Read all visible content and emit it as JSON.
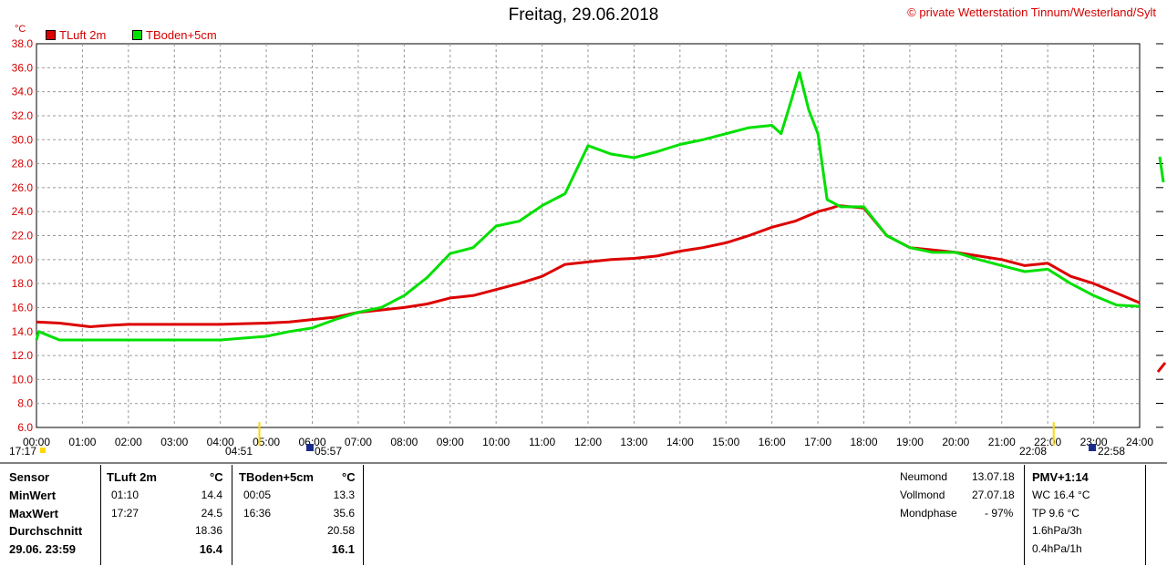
{
  "title": "Freitag, 29.06.2018",
  "copyright": "© private Wetterstation Tinnum/Westerland/Sylt",
  "unit": "°C",
  "colors": {
    "tluft": "#dd0000",
    "tboden": "#00e000",
    "grid": "#999999",
    "axis_text": "#d40000"
  },
  "sun_moon": {
    "moonset": "17:17",
    "sunrise": "04:51",
    "moonrise_rise": "05:57",
    "sunset": "22:08",
    "moonrise": "22:58"
  },
  "chart_data": {
    "type": "line",
    "title": "Freitag, 29.06.2018",
    "ylabel": "°C",
    "ylim": [
      6,
      38
    ],
    "xlim": [
      0,
      24
    ],
    "yticks": [
      "6.0",
      "8.0",
      "10.0",
      "12.0",
      "14.0",
      "16.0",
      "18.0",
      "20.0",
      "22.0",
      "24.0",
      "26.0",
      "28.0",
      "30.0",
      "32.0",
      "34.0",
      "36.0",
      "38.0"
    ],
    "xticks": [
      "00:00",
      "01:00",
      "02:00",
      "03:00",
      "04:00",
      "05:00",
      "06:00",
      "07:00",
      "08:00",
      "09:00",
      "10:00",
      "11:00",
      "12:00",
      "13:00",
      "14:00",
      "15:00",
      "16:00",
      "17:00",
      "18:00",
      "19:00",
      "20:00",
      "21:00",
      "22:00",
      "23:00",
      "24:00"
    ],
    "grid": true,
    "legend_position": "top-left",
    "series": [
      {
        "name": "TLuft 2m",
        "color": "#dd0000",
        "x": [
          0,
          0.5,
          1.17,
          1.5,
          2,
          3,
          4,
          5,
          5.5,
          6,
          6.5,
          7,
          7.5,
          8,
          8.5,
          9,
          9.5,
          10,
          10.5,
          11,
          11.5,
          12,
          12.5,
          13,
          13.5,
          14,
          14.5,
          15,
          15.5,
          16,
          16.5,
          17,
          17.3,
          17.45,
          18,
          18.5,
          19,
          19.5,
          20,
          20.5,
          21,
          21.5,
          22,
          22.5,
          23,
          23.5,
          24
        ],
        "y": [
          14.8,
          14.7,
          14.4,
          14.5,
          14.6,
          14.6,
          14.6,
          14.7,
          14.8,
          15.0,
          15.2,
          15.6,
          15.8,
          16.0,
          16.3,
          16.8,
          17.0,
          17.5,
          18.0,
          18.6,
          19.6,
          19.8,
          20.0,
          20.1,
          20.3,
          20.7,
          21.0,
          21.4,
          22.0,
          22.7,
          23.2,
          24.0,
          24.3,
          24.5,
          24.3,
          22.0,
          21.0,
          20.8,
          20.6,
          20.3,
          20.0,
          19.5,
          19.7,
          18.6,
          18.0,
          17.2,
          16.4
        ]
      },
      {
        "name": "TBoden+5cm",
        "color": "#00e000",
        "x": [
          0,
          0.05,
          0.5,
          1,
          2,
          3,
          4,
          5,
          5.5,
          6,
          6.5,
          7,
          7.5,
          8,
          8.5,
          9,
          9.5,
          10,
          10.5,
          11,
          11.5,
          12,
          12.5,
          13,
          13.5,
          14,
          14.5,
          15,
          15.5,
          16,
          16.2,
          16.4,
          16.6,
          16.8,
          17,
          17.2,
          17.5,
          18,
          18.5,
          19,
          19.5,
          20,
          20.5,
          21,
          21.5,
          22,
          22.5,
          23,
          23.5,
          24
        ],
        "y": [
          13.3,
          14.0,
          13.3,
          13.3,
          13.3,
          13.3,
          13.3,
          13.6,
          14.0,
          14.3,
          15.0,
          15.6,
          16.0,
          17.0,
          18.5,
          20.5,
          21.0,
          22.8,
          23.2,
          24.5,
          25.5,
          29.5,
          28.8,
          28.5,
          29.0,
          29.6,
          30.0,
          30.5,
          31.0,
          31.2,
          30.5,
          33.0,
          35.6,
          32.5,
          30.5,
          25.0,
          24.4,
          24.4,
          22.0,
          21.0,
          20.6,
          20.6,
          20.0,
          19.5,
          19.0,
          19.2,
          18.0,
          17.0,
          16.2,
          16.1
        ]
      }
    ]
  },
  "stats": {
    "headers": {
      "sensor": "Sensor",
      "s1": "TLuft 2m",
      "s1_unit": "°C",
      "s2": "TBoden+5cm",
      "s2_unit": "°C"
    },
    "rows": {
      "min_label": "MinWert",
      "min1_time": "01:10",
      "min1_val": "14.4",
      "min2_time": "00:05",
      "min2_val": "13.3",
      "max_label": "MaxWert",
      "max1_time": "17:27",
      "max1_val": "24.5",
      "max2_time": "16:36",
      "max2_val": "35.6",
      "avg_label": "Durchschnitt",
      "avg1_val": "18.36",
      "avg2_val": "20.58",
      "cur_label": "29.06. 23:59",
      "cur1_val": "16.4",
      "cur2_val": "16.1"
    },
    "moon": {
      "newmoon_label": "Neumond",
      "newmoon_date": "13.07.18",
      "fullmoon_label": "Vollmond",
      "fullmoon_date": "27.07.18",
      "phase_label": "Mondphase",
      "phase_value": "- 97%"
    },
    "pmv": {
      "title": "PMV+1:14",
      "wc": "WC 16.4 °C",
      "tp": "TP 9.6 °C",
      "p3h": "1.6hPa/3h",
      "p1h": "0.4hPa/1h"
    }
  }
}
